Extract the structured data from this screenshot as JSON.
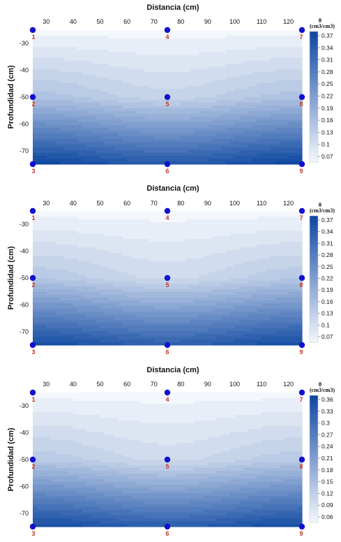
{
  "chart_data": [
    {
      "type": "heatmap",
      "xlabel": "Distancia (cm)",
      "ylabel": "Profundidad (cm)",
      "x_ticks": [
        30,
        40,
        50,
        60,
        70,
        80,
        90,
        100,
        110,
        120
      ],
      "y_ticks": [
        -30,
        -40,
        -50,
        -60,
        -70
      ],
      "xlim": [
        25,
        125
      ],
      "ylim": [
        -75,
        -25
      ],
      "colorbar": {
        "title": "θ",
        "unit": "(cm3/cm3)",
        "ticks": [
          0.37,
          0.34,
          0.31,
          0.28,
          0.25,
          0.22,
          0.19,
          0.16,
          0.13,
          0.1,
          0.07
        ],
        "range": [
          0.07,
          0.37
        ]
      },
      "points": [
        {
          "id": "1",
          "x": 25,
          "y": -25,
          "theta": 0.07
        },
        {
          "id": "2",
          "x": 25,
          "y": -50,
          "theta": 0.16
        },
        {
          "id": "3",
          "x": 25,
          "y": -75,
          "theta": 0.37
        },
        {
          "id": "4",
          "x": 75,
          "y": -25,
          "theta": 0.07
        },
        {
          "id": "5",
          "x": 75,
          "y": -50,
          "theta": 0.13
        },
        {
          "id": "6",
          "x": 75,
          "y": -75,
          "theta": 0.34
        },
        {
          "id": "7",
          "x": 125,
          "y": -25,
          "theta": 0.07
        },
        {
          "id": "8",
          "x": 125,
          "y": -50,
          "theta": 0.16
        },
        {
          "id": "9",
          "x": 125,
          "y": -75,
          "theta": 0.37
        }
      ]
    },
    {
      "type": "heatmap",
      "xlabel": "Distancia (cm)",
      "ylabel": "Profundidad (cm)",
      "x_ticks": [
        30,
        40,
        50,
        60,
        70,
        80,
        90,
        100,
        110,
        120
      ],
      "y_ticks": [
        -30,
        -40,
        -50,
        -60,
        -70
      ],
      "xlim": [
        25,
        125
      ],
      "ylim": [
        -75,
        -25
      ],
      "colorbar": {
        "title": "θ",
        "unit": "(cm3/cm3)",
        "ticks": [
          0.37,
          0.34,
          0.31,
          0.28,
          0.25,
          0.22,
          0.19,
          0.16,
          0.13,
          0.1,
          0.07
        ],
        "range": [
          0.07,
          0.37
        ]
      },
      "points": [
        {
          "id": "1",
          "x": 25,
          "y": -25,
          "theta": 0.07
        },
        {
          "id": "2",
          "x": 25,
          "y": -50,
          "theta": 0.15
        },
        {
          "id": "3",
          "x": 25,
          "y": -75,
          "theta": 0.36
        },
        {
          "id": "4",
          "x": 75,
          "y": -25,
          "theta": 0.07
        },
        {
          "id": "5",
          "x": 75,
          "y": -50,
          "theta": 0.12
        },
        {
          "id": "6",
          "x": 75,
          "y": -75,
          "theta": 0.33
        },
        {
          "id": "7",
          "x": 125,
          "y": -25,
          "theta": 0.07
        },
        {
          "id": "8",
          "x": 125,
          "y": -50,
          "theta": 0.15
        },
        {
          "id": "9",
          "x": 125,
          "y": -75,
          "theta": 0.36
        }
      ]
    },
    {
      "type": "heatmap",
      "xlabel": "Distancia (cm)",
      "ylabel": "Profundidad (cm)",
      "x_ticks": [
        30,
        40,
        50,
        60,
        70,
        80,
        90,
        100,
        110,
        120
      ],
      "y_ticks": [
        -30,
        -40,
        -50,
        -60,
        -70
      ],
      "xlim": [
        25,
        125
      ],
      "ylim": [
        -75,
        -25
      ],
      "colorbar": {
        "title": "θ",
        "unit": "(cm3/cm3)",
        "ticks": [
          0.36,
          0.33,
          0.3,
          0.27,
          0.24,
          0.21,
          0.18,
          0.15,
          0.12,
          0.09,
          0.06
        ],
        "range": [
          0.06,
          0.37
        ]
      },
      "points": [
        {
          "id": "1",
          "x": 25,
          "y": -25,
          "theta": 0.06
        },
        {
          "id": "2",
          "x": 25,
          "y": -50,
          "theta": 0.14
        },
        {
          "id": "3",
          "x": 25,
          "y": -75,
          "theta": 0.36
        },
        {
          "id": "4",
          "x": 75,
          "y": -25,
          "theta": 0.06
        },
        {
          "id": "5",
          "x": 75,
          "y": -50,
          "theta": 0.11
        },
        {
          "id": "6",
          "x": 75,
          "y": -75,
          "theta": 0.33
        },
        {
          "id": "7",
          "x": 125,
          "y": -25,
          "theta": 0.06
        },
        {
          "id": "8",
          "x": 125,
          "y": -50,
          "theta": 0.14
        },
        {
          "id": "9",
          "x": 125,
          "y": -75,
          "theta": 0.36
        }
      ]
    }
  ],
  "style": {
    "colorscale_low": "#f4f7fc",
    "colorscale_high": "#0d47a1",
    "point_color": "#1010d0",
    "point_label_color": "#c0392b"
  }
}
